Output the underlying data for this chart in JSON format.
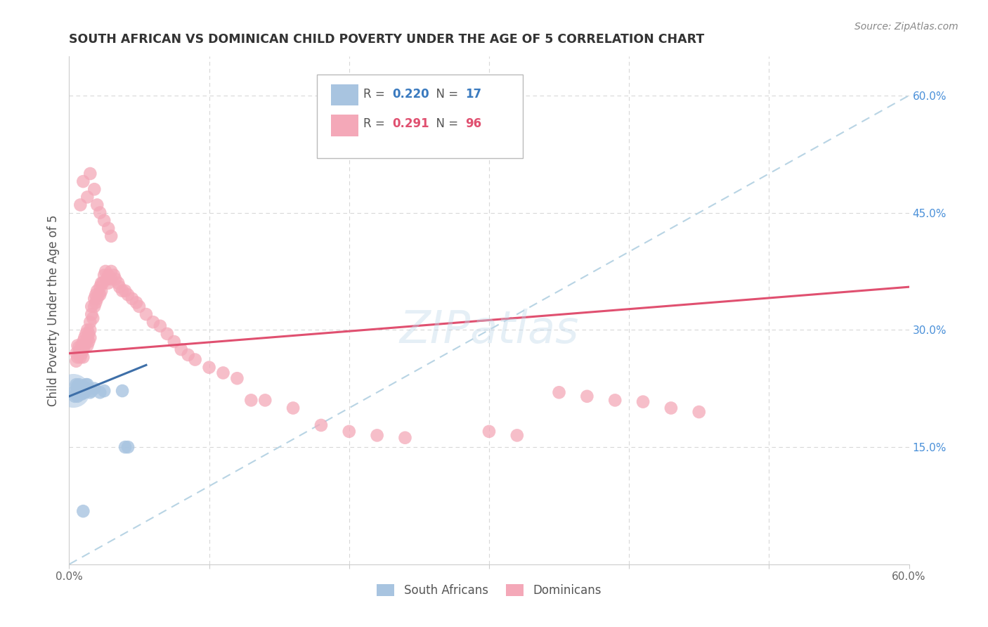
{
  "title": "SOUTH AFRICAN VS DOMINICAN CHILD POVERTY UNDER THE AGE OF 5 CORRELATION CHART",
  "source": "Source: ZipAtlas.com",
  "ylabel": "Child Poverty Under the Age of 5",
  "xlim": [
    0.0,
    0.6
  ],
  "ylim": [
    0.0,
    0.65
  ],
  "sa_color": "#a8c4e0",
  "sa_line_color": "#3e6fa8",
  "dom_color": "#f4a8b8",
  "dom_line_color": "#e05070",
  "diag_color": "#b8d4e4",
  "watermark": "ZIPatlas",
  "background_color": "#ffffff",
  "grid_color": "#d8d8d8",
  "sa_x": [
    0.003,
    0.004,
    0.005,
    0.005,
    0.006,
    0.006,
    0.006,
    0.007,
    0.007,
    0.008,
    0.008,
    0.009,
    0.01,
    0.01,
    0.011,
    0.012,
    0.012,
    0.013,
    0.015,
    0.016,
    0.018,
    0.022,
    0.025,
    0.038,
    0.04,
    0.042,
    0.01
  ],
  "sa_y": [
    0.22,
    0.215,
    0.218,
    0.23,
    0.215,
    0.222,
    0.228,
    0.22,
    0.23,
    0.218,
    0.225,
    0.218,
    0.22,
    0.225,
    0.22,
    0.225,
    0.23,
    0.23,
    0.22,
    0.222,
    0.225,
    0.22,
    0.222,
    0.222,
    0.15,
    0.15,
    0.068
  ],
  "sa_big_x": [
    0.003
  ],
  "sa_big_y": [
    0.222
  ],
  "sa_line_x0": 0.0,
  "sa_line_y0": 0.215,
  "sa_line_x1": 0.055,
  "sa_line_y1": 0.255,
  "dom_line_x0": 0.0,
  "dom_line_y0": 0.27,
  "dom_line_x1": 0.6,
  "dom_line_y1": 0.355,
  "dom_x": [
    0.005,
    0.005,
    0.006,
    0.006,
    0.007,
    0.007,
    0.008,
    0.008,
    0.009,
    0.009,
    0.01,
    0.01,
    0.01,
    0.011,
    0.011,
    0.012,
    0.012,
    0.013,
    0.013,
    0.013,
    0.014,
    0.014,
    0.015,
    0.015,
    0.015,
    0.016,
    0.016,
    0.017,
    0.018,
    0.018,
    0.019,
    0.019,
    0.02,
    0.02,
    0.021,
    0.022,
    0.022,
    0.023,
    0.023,
    0.024,
    0.025,
    0.026,
    0.027,
    0.028,
    0.028,
    0.03,
    0.03,
    0.032,
    0.033,
    0.035,
    0.036,
    0.038,
    0.04,
    0.042,
    0.045,
    0.048,
    0.05,
    0.055,
    0.008,
    0.01,
    0.013,
    0.015,
    0.018,
    0.02,
    0.022,
    0.025,
    0.028,
    0.03,
    0.06,
    0.065,
    0.07,
    0.075,
    0.08,
    0.085,
    0.09,
    0.1,
    0.11,
    0.12,
    0.13,
    0.14,
    0.16,
    0.18,
    0.2,
    0.22,
    0.24,
    0.3,
    0.32,
    0.35,
    0.37,
    0.39,
    0.41,
    0.43,
    0.45
  ],
  "dom_y": [
    0.27,
    0.26,
    0.265,
    0.28,
    0.272,
    0.278,
    0.275,
    0.265,
    0.28,
    0.27,
    0.285,
    0.275,
    0.265,
    0.29,
    0.28,
    0.295,
    0.285,
    0.3,
    0.29,
    0.28,
    0.295,
    0.285,
    0.31,
    0.3,
    0.29,
    0.33,
    0.32,
    0.315,
    0.34,
    0.33,
    0.345,
    0.335,
    0.35,
    0.34,
    0.345,
    0.355,
    0.345,
    0.36,
    0.35,
    0.36,
    0.37,
    0.375,
    0.365,
    0.37,
    0.36,
    0.375,
    0.365,
    0.37,
    0.365,
    0.36,
    0.355,
    0.35,
    0.35,
    0.345,
    0.34,
    0.335,
    0.33,
    0.32,
    0.46,
    0.49,
    0.47,
    0.5,
    0.48,
    0.46,
    0.45,
    0.44,
    0.43,
    0.42,
    0.31,
    0.305,
    0.295,
    0.285,
    0.275,
    0.268,
    0.262,
    0.252,
    0.245,
    0.238,
    0.21,
    0.21,
    0.2,
    0.178,
    0.17,
    0.165,
    0.162,
    0.17,
    0.165,
    0.22,
    0.215,
    0.21,
    0.208,
    0.2,
    0.195
  ]
}
